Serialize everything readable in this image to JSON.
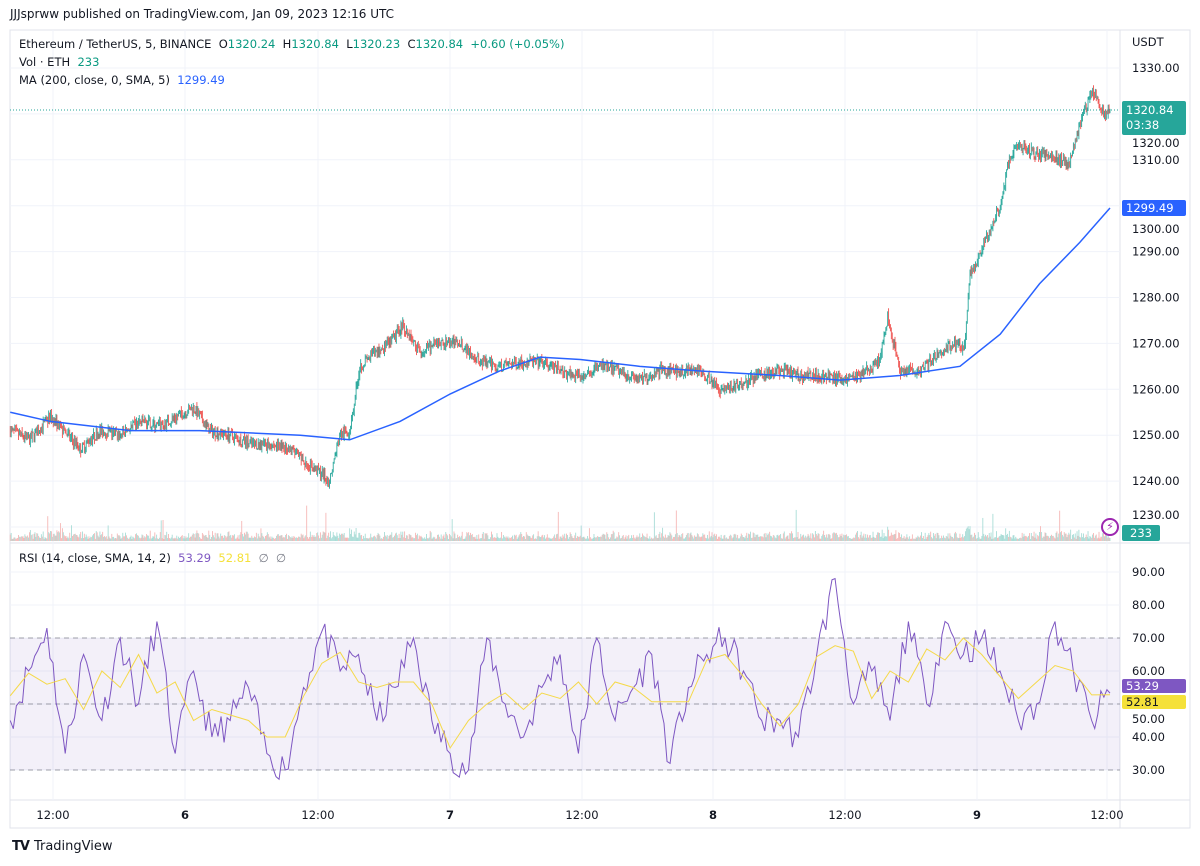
{
  "header": {
    "publisher_line": "JJJsprww published on TradingView.com, Jan 09, 2023 12:16 UTC"
  },
  "legend": {
    "symbol": "Ethereum / TetherUS, 5, BINANCE",
    "o_label": "O",
    "o": "1320.24",
    "h_label": "H",
    "h": "1320.84",
    "l_label": "L",
    "l": "1320.23",
    "c_label": "C",
    "c": "1320.84",
    "change": "+0.60 (+0.05%)",
    "vol_label": "Vol · ETH",
    "vol": "233",
    "ma_label": "MA (200, close, 0, SMA, 5)",
    "ma": "1299.49",
    "rsi_label": "RSI (14, close, SMA, 14, 2)",
    "rsi": "53.29",
    "rsi_sma": "52.81",
    "rsi_extra1": "∅",
    "rsi_extra2": "∅"
  },
  "price_axis": {
    "currency": "USDT",
    "current_price": "1320.84",
    "countdown": "03:38",
    "ma_value": "1299.49",
    "volume_value": "233"
  },
  "rsi_axis": {
    "rsi_value": "53.29",
    "rsi_sma_value": "52.81"
  },
  "footer": {
    "brand": "TradingView",
    "logo_text": "TV"
  },
  "colors": {
    "up": "#26a69a",
    "down": "#ef5350",
    "ma": "#2962ff",
    "rsi": "#7e57c2",
    "rsi_sma": "#f5d949",
    "rsi_band": "#7e57c2",
    "current_price": "#26a69a"
  },
  "icons": {
    "flash": "lightning-bolt-icon"
  },
  "chart_data": [
    {
      "type": "candlestick",
      "title": "Ethereum / TetherUS, 5, BINANCE",
      "interval_minutes": 5,
      "x_range": [
        "2023-01-05T08:05",
        "2023-01-09T12:15"
      ],
      "ylim": [
        1228,
        1336
      ],
      "ylabel": "USDT",
      "yticks": [
        "1330.00",
        "1320.00",
        "1310.00",
        "1300.00",
        "1290.00",
        "1280.00",
        "1270.00",
        "1260.00",
        "1250.00",
        "1240.00",
        "1230.00"
      ],
      "xticks": [
        "12:00",
        "6",
        "12:00",
        "7",
        "12:00",
        "8",
        "12:00",
        "9",
        "12:00"
      ],
      "grid": true,
      "close_path": [
        [
          "2023-01-05T08:05",
          1251
        ],
        [
          "2023-01-05T09:50",
          1249
        ],
        [
          "2023-01-05T11:45",
          1254
        ],
        [
          "2023-01-05T14:30",
          1247
        ],
        [
          "2023-01-05T16:15",
          1251
        ],
        [
          "2023-01-05T18:05",
          1250
        ],
        [
          "2023-01-05T19:55",
          1253
        ],
        [
          "2023-01-05T21:45",
          1252
        ],
        [
          "2023-01-06T00:45",
          1256
        ],
        [
          "2023-01-06T02:15",
          1251
        ],
        [
          "2023-01-06T04:05",
          1250
        ],
        [
          "2023-01-06T06:00",
          1248
        ],
        [
          "2023-01-06T07:45",
          1248
        ],
        [
          "2023-01-06T09:35",
          1247
        ],
        [
          "2023-01-06T10:55",
          1244
        ],
        [
          "2023-01-06T12:15",
          1242
        ],
        [
          "2023-01-06T13:10",
          1240
        ],
        [
          "2023-01-06T14:05",
          1250
        ],
        [
          "2023-01-06T15:00",
          1251
        ],
        [
          "2023-01-06T15:55",
          1265
        ],
        [
          "2023-01-06T17:20",
          1268
        ],
        [
          "2023-01-06T18:40",
          1270
        ],
        [
          "2023-01-06T19:50",
          1274
        ],
        [
          "2023-01-06T21:25",
          1268
        ],
        [
          "2023-01-06T23:15",
          1270
        ],
        [
          "2023-01-07T01:05",
          1270
        ],
        [
          "2023-01-07T02:50",
          1266
        ],
        [
          "2023-01-07T04:40",
          1265
        ],
        [
          "2023-01-07T06:30",
          1266
        ],
        [
          "2023-01-07T08:20",
          1266
        ],
        [
          "2023-01-07T10:10",
          1264
        ],
        [
          "2023-01-07T12:00",
          1263
        ],
        [
          "2023-01-07T13:50",
          1265
        ],
        [
          "2023-01-07T15:35",
          1264
        ],
        [
          "2023-01-07T17:25",
          1262
        ],
        [
          "2023-01-07T19:15",
          1264
        ],
        [
          "2023-01-07T21:05",
          1264
        ],
        [
          "2023-01-07T22:55",
          1264
        ],
        [
          "2023-01-08T00:45",
          1260
        ],
        [
          "2023-01-08T02:30",
          1261
        ],
        [
          "2023-01-08T04:20",
          1263
        ],
        [
          "2023-01-08T06:10",
          1264
        ],
        [
          "2023-01-08T08:00",
          1263
        ],
        [
          "2023-01-08T09:50",
          1263
        ],
        [
          "2023-01-08T11:40",
          1262
        ],
        [
          "2023-01-08T13:30",
          1263
        ],
        [
          "2023-01-08T15:15",
          1266
        ],
        [
          "2023-01-08T16:00",
          1276
        ],
        [
          "2023-01-08T17:05",
          1264
        ],
        [
          "2023-01-08T18:55",
          1264
        ],
        [
          "2023-01-08T20:45",
          1268
        ],
        [
          "2023-01-08T22:05",
          1270
        ],
        [
          "2023-01-08T23:00",
          1269
        ],
        [
          "2023-01-08T23:30",
          1285
        ],
        [
          "2023-01-09T00:50",
          1292
        ],
        [
          "2023-01-09T02:15",
          1300
        ],
        [
          "2023-01-09T03:10",
          1311
        ],
        [
          "2023-01-09T04:00",
          1313
        ],
        [
          "2023-01-09T05:50",
          1311
        ],
        [
          "2023-01-09T07:40",
          1310
        ],
        [
          "2023-01-09T08:35",
          1309
        ],
        [
          "2023-01-09T09:30",
          1318
        ],
        [
          "2023-01-09T10:40",
          1325
        ],
        [
          "2023-01-09T11:45",
          1320
        ],
        [
          "2023-01-09T12:15",
          1320.84
        ]
      ],
      "ma_series": {
        "name": "MA (200, close, 0, SMA, 5)",
        "points": [
          [
            "2023-01-05T08:05",
            1255
          ],
          [
            "2023-01-05T11:45",
            1253
          ],
          [
            "2023-01-05T19:00",
            1251
          ],
          [
            "2023-01-06T01:20",
            1251
          ],
          [
            "2023-01-06T10:30",
            1250
          ],
          [
            "2023-01-06T15:00",
            1249
          ],
          [
            "2023-01-06T19:35",
            1253
          ],
          [
            "2023-01-07T00:10",
            1259
          ],
          [
            "2023-01-07T04:40",
            1264
          ],
          [
            "2023-01-07T08:20",
            1267
          ],
          [
            "2023-01-07T12:00",
            1266.5
          ],
          [
            "2023-01-07T17:25",
            1265
          ],
          [
            "2023-01-07T22:55",
            1264
          ],
          [
            "2023-01-08T06:10",
            1263
          ],
          [
            "2023-01-08T11:40",
            1262
          ],
          [
            "2023-01-08T17:05",
            1263
          ],
          [
            "2023-01-08T22:35",
            1265
          ],
          [
            "2023-01-09T02:15",
            1272
          ],
          [
            "2023-01-09T05:50",
            1283
          ],
          [
            "2023-01-09T09:30",
            1292
          ],
          [
            "2023-01-09T12:15",
            1299.49
          ]
        ]
      }
    },
    {
      "type": "line",
      "title": "RSI (14, close, SMA, 14, 2)",
      "x_range": [
        "2023-01-05T08:05",
        "2023-01-09T12:15"
      ],
      "ylim": [
        23,
        98
      ],
      "yticks": [
        "90.00",
        "80.00",
        "70.00",
        "60.00",
        "50.00",
        "40.00",
        "30.00"
      ],
      "band": [
        30,
        70
      ],
      "midline": 50,
      "series": [
        {
          "name": "RSI",
          "values": [
            45,
            60,
            73,
            35,
            65,
            45,
            70,
            50,
            75,
            35,
            60,
            40,
            45,
            55,
            35,
            30,
            55,
            72,
            60,
            65,
            45,
            55,
            70,
            45,
            35,
            30,
            70,
            50,
            40,
            55,
            65,
            35,
            70,
            45,
            55,
            65,
            32,
            55,
            65,
            70,
            60,
            45,
            45,
            40,
            65,
            88,
            50,
            60,
            45,
            75,
            50,
            75,
            65,
            70,
            60,
            45,
            50,
            75,
            60,
            45,
            53.29
          ]
        }
      ]
    }
  ]
}
